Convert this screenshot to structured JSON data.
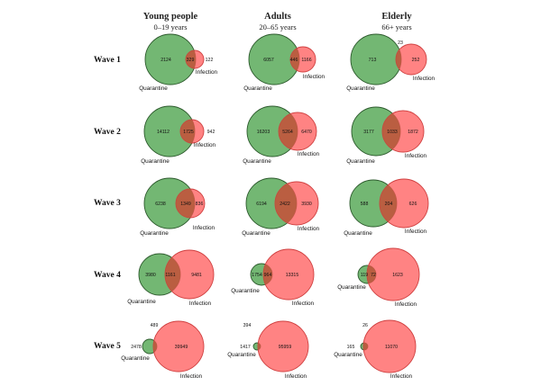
{
  "columns": [
    {
      "title": "Young people",
      "subtitle": "0–19 years"
    },
    {
      "title": "Adults",
      "subtitle": "20–65 years"
    },
    {
      "title": "Elderly",
      "subtitle": "66+ years"
    }
  ],
  "rows": [
    {
      "label": "Wave 1"
    },
    {
      "label": "Wave 2"
    },
    {
      "label": "Wave 3"
    },
    {
      "label": "Wave 4"
    },
    {
      "label": "Wave 5"
    }
  ],
  "set_labels": {
    "quarantine": "Quarantine",
    "infection": "Infection"
  },
  "colors": {
    "quarantine": "#5aaa5a",
    "infection": "#ff5a5a",
    "overlap": "#b45a3c"
  },
  "venns": [
    {
      "wave": "Wave 1",
      "group": "Young people",
      "quarantine_only": "2124",
      "overlap": "329",
      "infection_only": "122"
    },
    {
      "wave": "Wave 1",
      "group": "Adults",
      "quarantine_only": "6057",
      "overlap": "446",
      "infection_only": "1166"
    },
    {
      "wave": "Wave 1",
      "group": "Elderly",
      "quarantine_only": "713",
      "overlap": "23",
      "infection_only": "252"
    },
    {
      "wave": "Wave 2",
      "group": "Young people",
      "quarantine_only": "14112",
      "overlap": "1725",
      "infection_only": "942"
    },
    {
      "wave": "Wave 2",
      "group": "Adults",
      "quarantine_only": "16203",
      "overlap": "5264",
      "infection_only": "6470"
    },
    {
      "wave": "Wave 2",
      "group": "Elderly",
      "quarantine_only": "3177",
      "overlap": "1033",
      "infection_only": "1872"
    },
    {
      "wave": "Wave 3",
      "group": "Young people",
      "quarantine_only": "6238",
      "overlap": "1349",
      "infection_only": "836"
    },
    {
      "wave": "Wave 3",
      "group": "Adults",
      "quarantine_only": "6194",
      "overlap": "2422",
      "infection_only": "3930"
    },
    {
      "wave": "Wave 3",
      "group": "Elderly",
      "quarantine_only": "588",
      "overlap": "204",
      "infection_only": "626"
    },
    {
      "wave": "Wave 4",
      "group": "Young people",
      "quarantine_only": "3980",
      "overlap": "1161",
      "infection_only": "9481"
    },
    {
      "wave": "Wave 4",
      "group": "Adults",
      "quarantine_only": "1754",
      "overlap": "964",
      "infection_only": "13315"
    },
    {
      "wave": "Wave 4",
      "group": "Elderly",
      "quarantine_only": "119",
      "overlap": "72",
      "infection_only": "1623"
    },
    {
      "wave": "Wave 5",
      "group": "Young people",
      "quarantine_only": "2478",
      "overlap": "489",
      "infection_only": "39949"
    },
    {
      "wave": "Wave 5",
      "group": "Adults",
      "quarantine_only": "1417",
      "overlap": "394",
      "infection_only": "95959"
    },
    {
      "wave": "Wave 5",
      "group": "Elderly",
      "quarantine_only": "165",
      "overlap": "26",
      "infection_only": "11070"
    }
  ]
}
